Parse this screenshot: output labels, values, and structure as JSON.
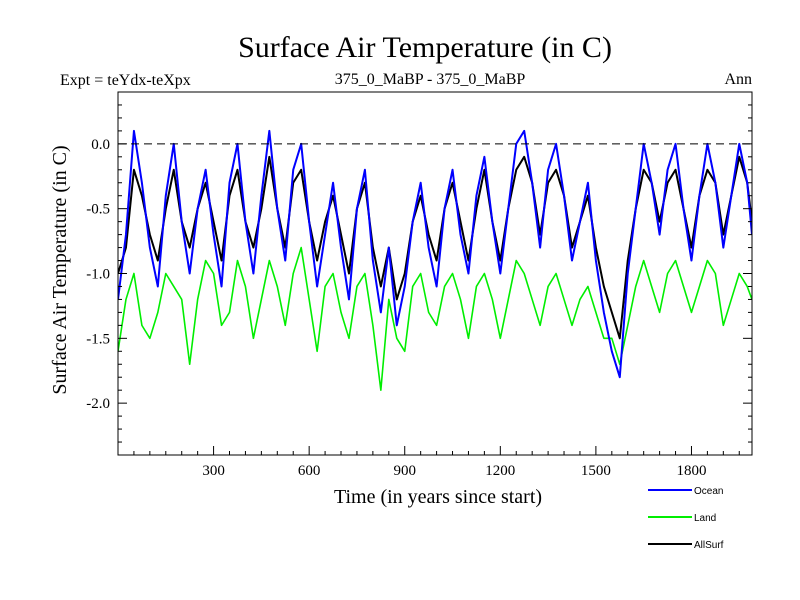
{
  "chart_data": {
    "type": "line",
    "title": "Surface Air Temperature (in C)",
    "subtitle_left": "Expt = teYdx-teXpx",
    "subtitle_center": "375_0_MaBP - 375_0_MaBP",
    "subtitle_right": "Ann",
    "xlabel": "Time (in years since start)",
    "ylabel": "Surface Air Temperature (in C)",
    "xlim": [
      0,
      1990
    ],
    "ylim": [
      -2.4,
      0.4
    ],
    "x_ticks": [
      300,
      600,
      900,
      1200,
      1500,
      1800
    ],
    "x_tick_labels": [
      "300",
      "600",
      "900",
      "1200",
      "1500",
      "1800"
    ],
    "y_ticks": [
      0.0,
      -0.5,
      -1.0,
      -1.5,
      -2.0
    ],
    "y_tick_labels": [
      "0.0",
      "-0.5",
      "-1.0",
      "-1.5",
      "-2.0"
    ],
    "reference_line": {
      "y": 0.0,
      "style": "dashed"
    },
    "x": [
      0,
      25,
      50,
      75,
      100,
      125,
      150,
      175,
      200,
      225,
      250,
      275,
      300,
      325,
      350,
      375,
      400,
      425,
      450,
      475,
      500,
      525,
      550,
      575,
      600,
      625,
      650,
      675,
      700,
      725,
      750,
      775,
      800,
      825,
      850,
      875,
      900,
      925,
      950,
      975,
      1000,
      1025,
      1050,
      1075,
      1100,
      1125,
      1150,
      1175,
      1200,
      1225,
      1250,
      1275,
      1300,
      1325,
      1350,
      1375,
      1400,
      1425,
      1450,
      1475,
      1500,
      1525,
      1550,
      1575,
      1600,
      1625,
      1650,
      1675,
      1700,
      1725,
      1750,
      1775,
      1800,
      1825,
      1850,
      1875,
      1900,
      1925,
      1950,
      1975,
      1990
    ],
    "series": [
      {
        "name": "Ocean",
        "color": "#0000ff",
        "values": [
          -1.2,
          -0.7,
          0.1,
          -0.3,
          -0.8,
          -1.1,
          -0.4,
          0.0,
          -0.6,
          -1.0,
          -0.5,
          -0.2,
          -0.7,
          -1.1,
          -0.3,
          0.0,
          -0.6,
          -1.0,
          -0.4,
          0.1,
          -0.5,
          -0.9,
          -0.2,
          0.0,
          -0.6,
          -1.1,
          -0.7,
          -0.3,
          -0.8,
          -1.2,
          -0.5,
          -0.2,
          -0.9,
          -1.3,
          -0.8,
          -1.4,
          -1.1,
          -0.6,
          -0.3,
          -0.8,
          -1.1,
          -0.5,
          -0.2,
          -0.7,
          -1.0,
          -0.4,
          -0.1,
          -0.6,
          -1.0,
          -0.5,
          0.0,
          0.1,
          -0.3,
          -0.8,
          -0.2,
          0.0,
          -0.4,
          -0.9,
          -0.6,
          -0.3,
          -0.9,
          -1.3,
          -1.6,
          -1.8,
          -1.0,
          -0.5,
          0.0,
          -0.3,
          -0.7,
          -0.2,
          0.0,
          -0.5,
          -0.9,
          -0.4,
          0.0,
          -0.3,
          -0.8,
          -0.4,
          0.0,
          -0.3,
          -0.7
        ]
      },
      {
        "name": "Land",
        "color": "#00ee00",
        "values": [
          -1.6,
          -1.2,
          -1.0,
          -1.4,
          -1.5,
          -1.3,
          -1.0,
          -1.1,
          -1.2,
          -1.7,
          -1.2,
          -0.9,
          -1.0,
          -1.4,
          -1.3,
          -0.9,
          -1.1,
          -1.5,
          -1.2,
          -0.9,
          -1.1,
          -1.4,
          -1.0,
          -0.8,
          -1.2,
          -1.6,
          -1.1,
          -1.0,
          -1.3,
          -1.5,
          -1.1,
          -1.0,
          -1.4,
          -1.9,
          -1.2,
          -1.5,
          -1.6,
          -1.1,
          -1.0,
          -1.3,
          -1.4,
          -1.1,
          -1.0,
          -1.2,
          -1.5,
          -1.1,
          -1.0,
          -1.2,
          -1.5,
          -1.2,
          -0.9,
          -1.0,
          -1.2,
          -1.4,
          -1.1,
          -1.0,
          -1.2,
          -1.4,
          -1.2,
          -1.1,
          -1.3,
          -1.5,
          -1.5,
          -1.7,
          -1.4,
          -1.1,
          -0.9,
          -1.1,
          -1.3,
          -1.0,
          -0.9,
          -1.1,
          -1.3,
          -1.1,
          -0.9,
          -1.0,
          -1.4,
          -1.2,
          -1.0,
          -1.1,
          -1.2
        ]
      },
      {
        "name": "AllSurf",
        "color": "#000000",
        "values": [
          -1.0,
          -0.8,
          -0.2,
          -0.4,
          -0.7,
          -0.9,
          -0.5,
          -0.2,
          -0.6,
          -0.8,
          -0.5,
          -0.3,
          -0.6,
          -0.9,
          -0.4,
          -0.2,
          -0.6,
          -0.8,
          -0.5,
          -0.1,
          -0.5,
          -0.8,
          -0.3,
          -0.2,
          -0.6,
          -0.9,
          -0.6,
          -0.4,
          -0.7,
          -1.0,
          -0.5,
          -0.3,
          -0.8,
          -1.1,
          -0.8,
          -1.2,
          -1.0,
          -0.6,
          -0.4,
          -0.7,
          -0.9,
          -0.5,
          -0.3,
          -0.6,
          -0.9,
          -0.5,
          -0.2,
          -0.6,
          -0.9,
          -0.5,
          -0.2,
          -0.1,
          -0.3,
          -0.7,
          -0.3,
          -0.2,
          -0.4,
          -0.8,
          -0.6,
          -0.4,
          -0.8,
          -1.1,
          -1.3,
          -1.5,
          -0.9,
          -0.5,
          -0.2,
          -0.3,
          -0.6,
          -0.3,
          -0.2,
          -0.5,
          -0.8,
          -0.4,
          -0.2,
          -0.3,
          -0.7,
          -0.4,
          -0.1,
          -0.3,
          -0.6
        ]
      }
    ],
    "legend_position": "bottom-right"
  }
}
